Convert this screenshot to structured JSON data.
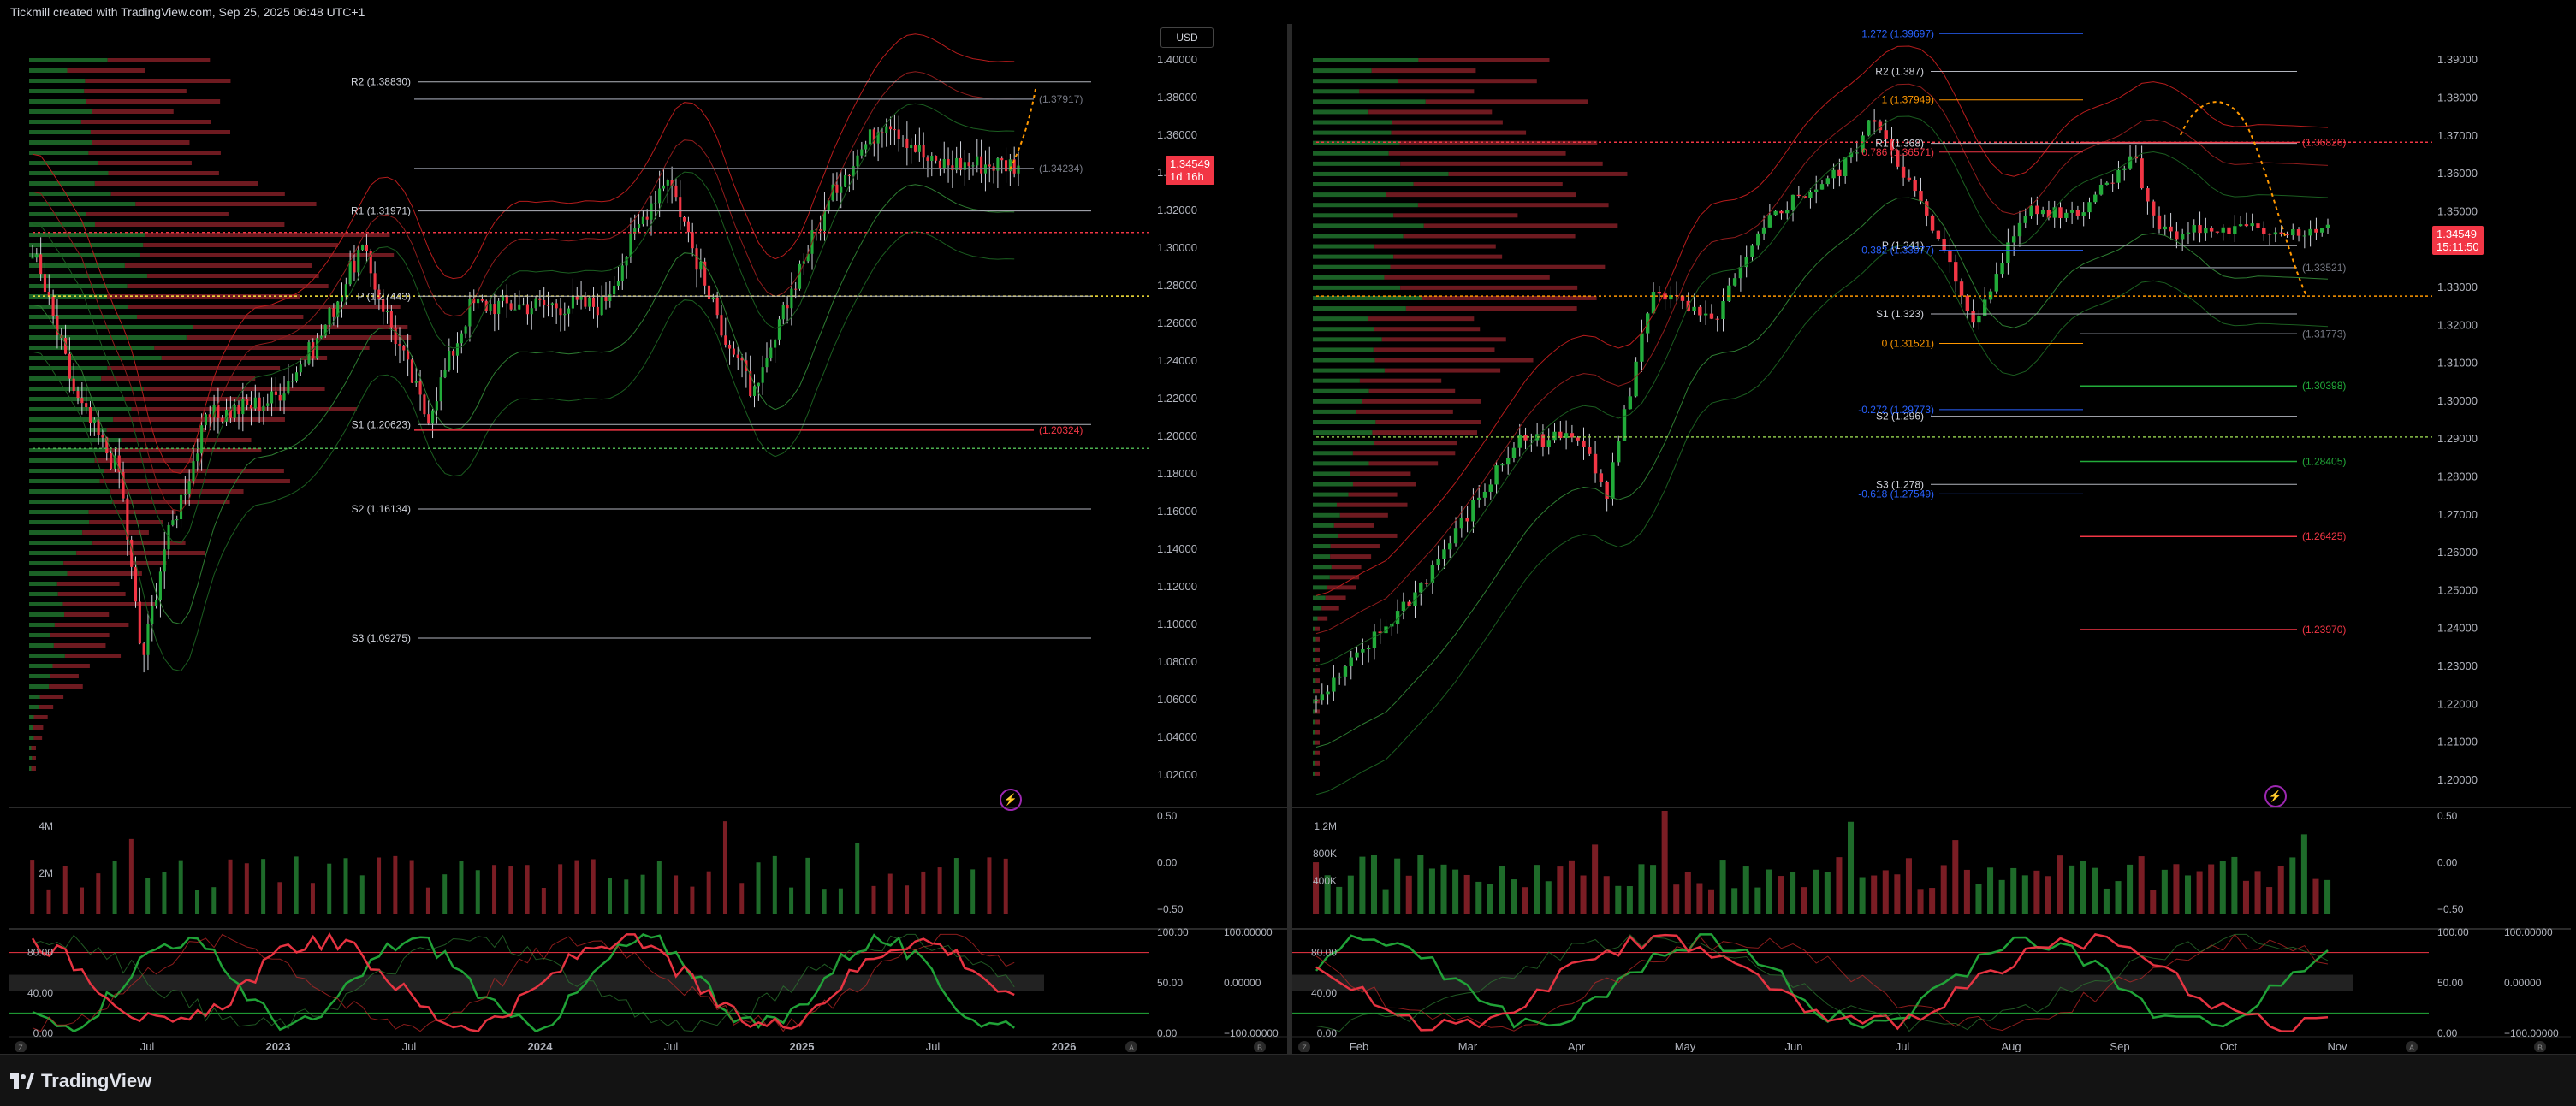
{
  "header": {
    "title": "Tickmill created with TradingView.com, Sep 25, 2025 06:48 UTC+1"
  },
  "footer": {
    "logo_text": "TradingView"
  },
  "colors": {
    "bull": "#22ab3a",
    "bear": "#f23645",
    "pivot": "#d1d4dc",
    "fib_blue": "#2962ff",
    "fib_orange": "#ff9800",
    "projection": "#ff9800"
  },
  "icons": [
    "tradingview-logo-icon",
    "lightning-icon",
    "zoom-icon",
    "auto-scale-icon"
  ],
  "left": {
    "currency_label": "USD",
    "price_tag": {
      "price": "1.34549",
      "countdown": "1d 16h"
    },
    "price_axis": [
      "1.40000",
      "1.38000",
      "1.36000",
      "1.34000",
      "1.32000",
      "1.30000",
      "1.28000",
      "1.26000",
      "1.24000",
      "1.22000",
      "1.20000",
      "1.18000",
      "1.16000",
      "1.14000",
      "1.12000",
      "1.10000",
      "1.08000",
      "1.06000",
      "1.04000",
      "1.02000"
    ],
    "time_axis": [
      "Jul",
      "2023",
      "Jul",
      "2024",
      "Jul",
      "2025",
      "Jul",
      "2026"
    ],
    "pivot_labels": [
      {
        "text": "R2 (1.38830)",
        "price": 1.3883,
        "color": "#d1d4dc"
      },
      {
        "text": "R1 (1.31971)",
        "price": 1.31971,
        "color": "#d1d4dc"
      },
      {
        "text": "P (1.27443)",
        "price": 1.27443,
        "color": "#d1d4dc"
      },
      {
        "text": "S1 (1.20623)",
        "price": 1.20623,
        "color": "#d1d4dc"
      },
      {
        "text": "S2 (1.16134)",
        "price": 1.16134,
        "color": "#d1d4dc"
      },
      {
        "text": "S3 (1.09275)",
        "price": 1.09275,
        "color": "#d1d4dc"
      }
    ],
    "level_labels": [
      {
        "text": "(1.37917)",
        "price": 1.37917,
        "color": "#787b86"
      },
      {
        "text": "(1.34234)",
        "price": 1.34234,
        "color": "#787b86"
      },
      {
        "text": "(1.20324)",
        "price": 1.20324,
        "color": "#f23645"
      }
    ],
    "volume_axis": [
      "4M",
      "2M"
    ],
    "volume_osc_axis": [
      "0.50",
      "0.00",
      "−0.50"
    ],
    "stoch_axis": [
      "80.00",
      "40.00",
      "0.00"
    ],
    "stoch_right_axis": [
      "100.00",
      "50.00",
      "0.00"
    ],
    "stoch_far_axis": [
      "100.00000",
      "0.00000",
      "−100.00000"
    ],
    "corner_buttons": [
      "Z",
      "A",
      "B"
    ]
  },
  "right": {
    "price_tag": {
      "price": "1.34549",
      "countdown": "15:11:50"
    },
    "price_axis": [
      "1.39000",
      "1.38000",
      "1.37000",
      "1.36000",
      "1.35000",
      "1.34000",
      "1.33000",
      "1.32000",
      "1.31000",
      "1.30000",
      "1.29000",
      "1.28000",
      "1.27000",
      "1.26000",
      "1.25000",
      "1.24000",
      "1.23000",
      "1.22000",
      "1.21000",
      "1.20000"
    ],
    "time_axis": [
      "Feb",
      "Mar",
      "Apr",
      "May",
      "Jun",
      "Jul",
      "Aug",
      "Sep",
      "Oct",
      "Nov"
    ],
    "pivot_labels": [
      {
        "text": "R2 (1.387)",
        "price": 1.387,
        "color": "#d1d4dc"
      },
      {
        "text": "R1 (1.368)",
        "price": 1.368,
        "color": "#d1d4dc"
      },
      {
        "text": "P (1.341)",
        "price": 1.341,
        "color": "#d1d4dc"
      },
      {
        "text": "S1 (1.323)",
        "price": 1.323,
        "color": "#d1d4dc"
      },
      {
        "text": "S2 (1.296)",
        "price": 1.296,
        "color": "#d1d4dc"
      },
      {
        "text": "S3 (1.278)",
        "price": 1.278,
        "color": "#d1d4dc"
      }
    ],
    "fib_labels": [
      {
        "text": "1.272 (1.39697)",
        "price": 1.39697,
        "color": "#2962ff"
      },
      {
        "text": "1 (1.37949)",
        "price": 1.37949,
        "color": "#ff9800"
      },
      {
        "text": "0.786 (1.36571)",
        "price": 1.36571,
        "color": "#f23645"
      },
      {
        "text": "0.382 (1.33977)",
        "price": 1.33977,
        "color": "#2962ff"
      },
      {
        "text": "0 (1.31521)",
        "price": 1.31521,
        "color": "#ff9800"
      },
      {
        "text": "-0.272 (1.29773)",
        "price": 1.29773,
        "color": "#2962ff"
      },
      {
        "text": "-0.618 (1.27549)",
        "price": 1.27549,
        "color": "#2962ff"
      }
    ],
    "level_labels": [
      {
        "text": "(1.36826)",
        "price": 1.36826,
        "color": "#f23645"
      },
      {
        "text": "(1.33521)",
        "price": 1.33521,
        "color": "#787b86"
      },
      {
        "text": "(1.31773)",
        "price": 1.31773,
        "color": "#787b86"
      },
      {
        "text": "(1.30398)",
        "price": 1.30398,
        "color": "#22ab3a"
      },
      {
        "text": "(1.28405)",
        "price": 1.28405,
        "color": "#22ab3a"
      },
      {
        "text": "(1.26425)",
        "price": 1.26425,
        "color": "#f23645"
      },
      {
        "text": "(1.23970)",
        "price": 1.2397,
        "color": "#f23645"
      }
    ],
    "volume_axis": [
      "1.2M",
      "800K",
      "400K"
    ],
    "volume_osc_axis": [
      "0.50",
      "0.00",
      "−0.50"
    ],
    "stoch_axis": [
      "80.00",
      "40.00",
      "0.00"
    ],
    "stoch_right_axis": [
      "100.00",
      "50.00",
      "0.00"
    ],
    "stoch_far_axis": [
      "100.00000",
      "0.00000",
      "−100.00000"
    ],
    "corner_buttons": [
      "Z",
      "A",
      "B"
    ]
  },
  "chart_data": [
    {
      "type": "candlestick",
      "ylim": [
        1.01,
        1.41
      ],
      "x_range": [
        "2022-04",
        "2026-01"
      ],
      "series": [
        {
          "values": [
            {
              "x": "2022-04",
              "close": 1.3
            },
            {
              "x": "2022-06",
              "close": 1.22
            },
            {
              "x": "2022-08",
              "close": 1.18
            },
            {
              "x": "2022-09",
              "close": 1.08
            },
            {
              "x": "2022-10",
              "close": 1.14
            },
            {
              "x": "2022-12",
              "close": 1.21
            },
            {
              "x": "2023-03",
              "close": 1.22
            },
            {
              "x": "2023-05",
              "close": 1.25
            },
            {
              "x": "2023-07",
              "close": 1.3
            },
            {
              "x": "2023-10",
              "close": 1.21
            },
            {
              "x": "2023-12",
              "close": 1.27
            },
            {
              "x": "2024-03",
              "close": 1.27
            },
            {
              "x": "2024-06",
              "close": 1.27
            },
            {
              "x": "2024-08",
              "close": 1.32
            },
            {
              "x": "2024-09",
              "close": 1.34
            },
            {
              "x": "2024-11",
              "close": 1.27
            },
            {
              "x": "2025-01",
              "close": 1.22
            },
            {
              "x": "2025-03",
              "close": 1.29
            },
            {
              "x": "2025-05",
              "close": 1.34
            },
            {
              "x": "2025-07",
              "close": 1.37
            },
            {
              "x": "2025-09",
              "close": 1.345
            }
          ]
        }
      ]
    },
    {
      "type": "candlestick",
      "ylim": [
        1.195,
        1.395
      ],
      "x_range": [
        "2025-01-15",
        "2025-11-15"
      ],
      "series": [
        {
          "values": [
            {
              "x": "2025-01-15",
              "close": 1.22
            },
            {
              "x": "2025-02-15",
              "close": 1.25
            },
            {
              "x": "2025-03-15",
              "close": 1.29
            },
            {
              "x": "2025-04-05",
              "close": 1.29
            },
            {
              "x": "2025-04-11",
              "close": 1.275
            },
            {
              "x": "2025-04-25",
              "close": 1.33
            },
            {
              "x": "2025-05-12",
              "close": 1.32
            },
            {
              "x": "2025-06-01",
              "close": 1.35
            },
            {
              "x": "2025-06-20",
              "close": 1.36
            },
            {
              "x": "2025-07-01",
              "close": 1.375
            },
            {
              "x": "2025-07-15",
              "close": 1.35
            },
            {
              "x": "2025-08-01",
              "close": 1.32
            },
            {
              "x": "2025-08-14",
              "close": 1.35
            },
            {
              "x": "2025-09-01",
              "close": 1.35
            },
            {
              "x": "2025-09-17",
              "close": 1.365
            },
            {
              "x": "2025-09-25",
              "close": 1.345
            }
          ]
        }
      ]
    }
  ]
}
